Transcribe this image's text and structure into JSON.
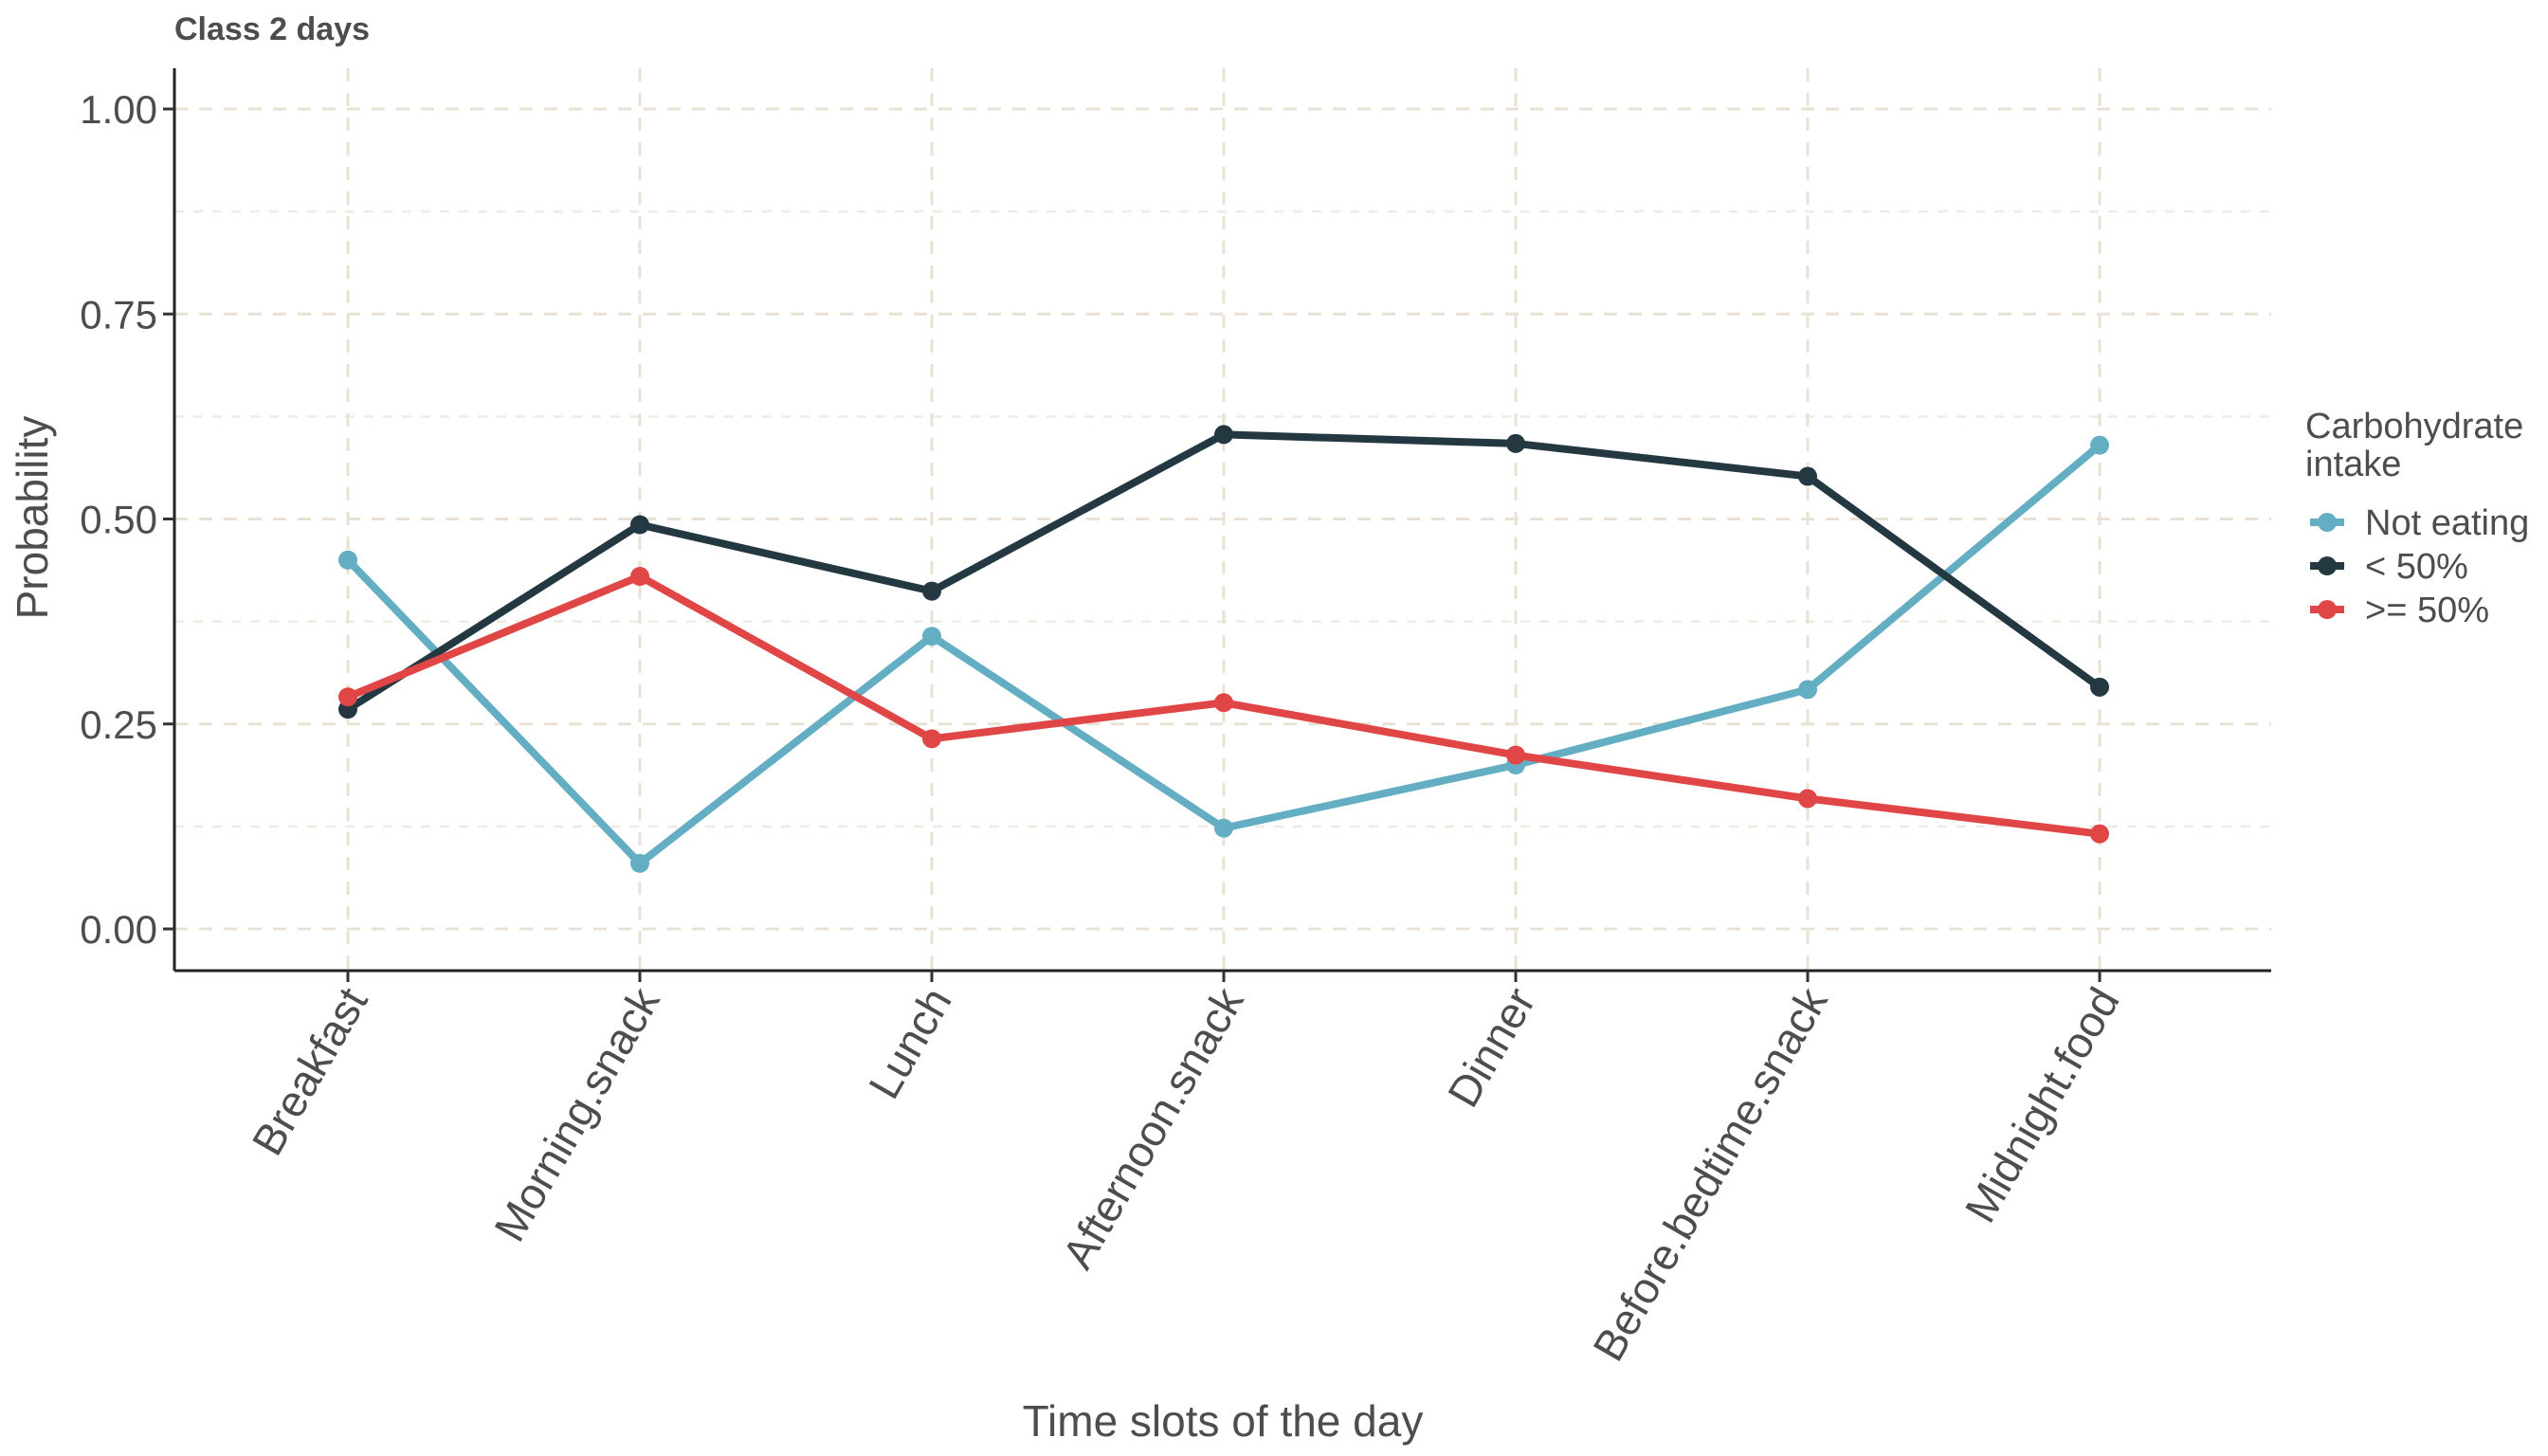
{
  "chart_data": {
    "type": "line",
    "title": "Class 2 days",
    "xlabel": "Time slots of the day",
    "ylabel": "Probability",
    "categories": [
      "Breakfast",
      "Morning.snack",
      "Lunch",
      "Afternoon.snack",
      "Dinner",
      "Before.bedtime.snack",
      "Midnight.food"
    ],
    "ylim": [
      -0.05,
      1.05
    ],
    "yticks": [
      0.0,
      0.25,
      0.5,
      0.75,
      1.0
    ],
    "ytick_labels": [
      "0.00",
      "0.25",
      "0.50",
      "0.75",
      "1.00"
    ],
    "grid": true,
    "legend": {
      "title_lines": [
        "Carbohydrate",
        "intake"
      ],
      "placement": "right"
    },
    "series": [
      {
        "name": "Not eating",
        "color": "#64aec4",
        "values": [
          0.45,
          0.08,
          0.357,
          0.123,
          0.2,
          0.292,
          0.59
        ]
      },
      {
        "name": "< 50%",
        "color": "#233841",
        "values": [
          0.268,
          0.493,
          0.412,
          0.603,
          0.592,
          0.552,
          0.295
        ]
      },
      {
        "name": ">= 50%",
        "color": "#e04646",
        "values": [
          0.283,
          0.43,
          0.232,
          0.276,
          0.212,
          0.159,
          0.116
        ]
      }
    ]
  }
}
